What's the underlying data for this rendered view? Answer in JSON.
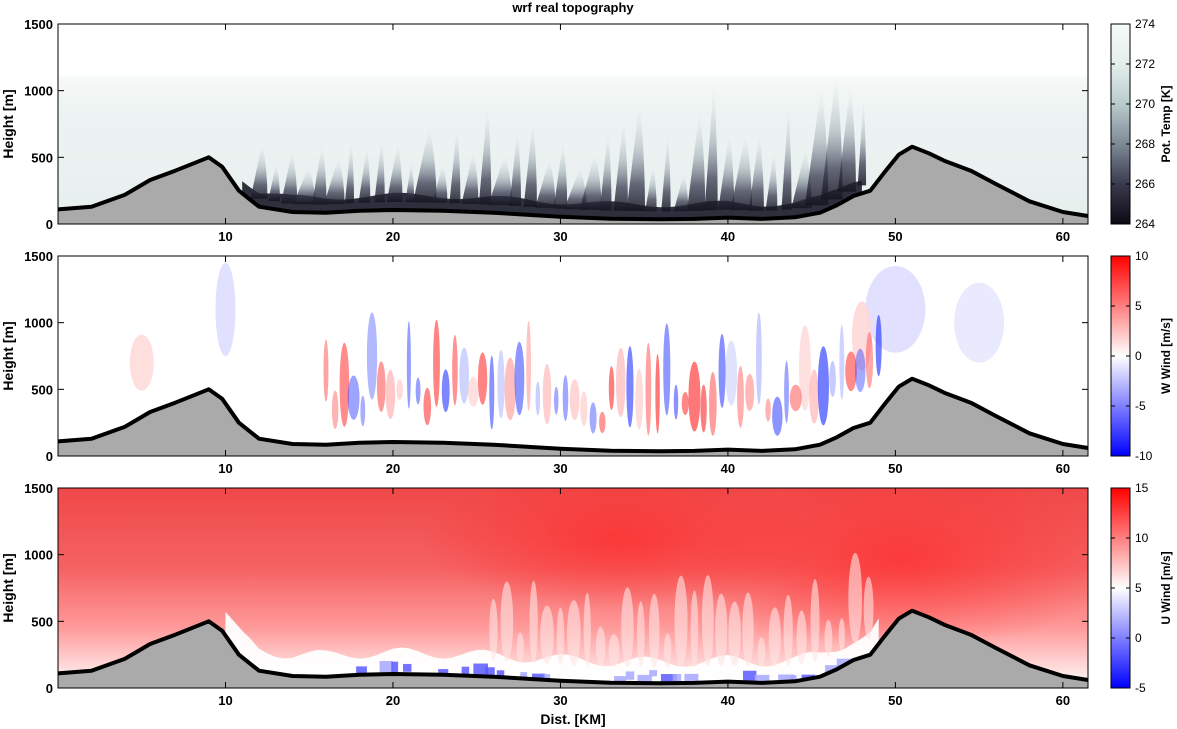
{
  "title": "wrf real topography",
  "chart_data": [
    {
      "type": "heatmap",
      "field": "potential_temperature",
      "xlabel": "",
      "ylabel": "Height [m]",
      "xlim": [
        0,
        61.5
      ],
      "ylim": [
        0,
        1500
      ],
      "xticks": [
        10,
        20,
        30,
        40,
        50,
        60
      ],
      "yticks": [
        0,
        500,
        1000,
        1500
      ],
      "colorbar": {
        "label": "Pot. Temp [K]",
        "range": [
          264,
          274
        ],
        "ticks": [
          264,
          266,
          268,
          270,
          272,
          274
        ],
        "colors": [
          "#000000",
          "#3a3a4e",
          "#7d8a96",
          "#b9cbcc",
          "#e4efed",
          "#f6faf9"
        ]
      }
    },
    {
      "type": "heatmap",
      "field": "w_wind",
      "xlabel": "",
      "ylabel": "Height [m]",
      "xlim": [
        0,
        61.5
      ],
      "ylim": [
        0,
        1500
      ],
      "xticks": [
        10,
        20,
        30,
        40,
        50,
        60
      ],
      "yticks": [
        0,
        500,
        1000,
        1500
      ],
      "colorbar": {
        "label": "W Wind [m/s]",
        "range": [
          -10,
          10
        ],
        "ticks": [
          -10,
          -5,
          0,
          5,
          10
        ],
        "colors": [
          "#0000ff",
          "#ffffff",
          "#ff0000"
        ]
      }
    },
    {
      "type": "heatmap",
      "field": "u_wind",
      "xlabel": "Dist. [KM]",
      "ylabel": "Height [m]",
      "xlim": [
        0,
        61.5
      ],
      "ylim": [
        0,
        1500
      ],
      "xticks": [
        10,
        20,
        30,
        40,
        50,
        60
      ],
      "yticks": [
        0,
        500,
        1000,
        1500
      ],
      "colorbar": {
        "label": "U Wind [m/s]",
        "range": [
          -5,
          15
        ],
        "ticks": [
          -5,
          0,
          5,
          10,
          15
        ],
        "colors": [
          "#0000ff",
          "#ffffff",
          "#ff0000"
        ]
      }
    }
  ],
  "terrain": {
    "x": [
      0,
      2,
      4,
      5.5,
      7,
      8.2,
      9,
      9.8,
      10.8,
      12,
      14,
      16,
      18,
      20,
      23,
      26,
      28,
      30,
      33,
      36,
      38,
      40,
      42,
      44,
      45.5,
      46.5,
      47.5,
      48.5,
      49.3,
      50.2,
      51,
      52,
      53,
      54.5,
      56,
      58,
      60,
      61.5
    ],
    "y": [
      110,
      130,
      220,
      330,
      400,
      460,
      500,
      430,
      250,
      130,
      90,
      85,
      100,
      105,
      100,
      85,
      70,
      55,
      40,
      35,
      38,
      48,
      38,
      50,
      85,
      140,
      210,
      250,
      380,
      520,
      580,
      530,
      470,
      400,
      300,
      170,
      90,
      60
    ]
  }
}
